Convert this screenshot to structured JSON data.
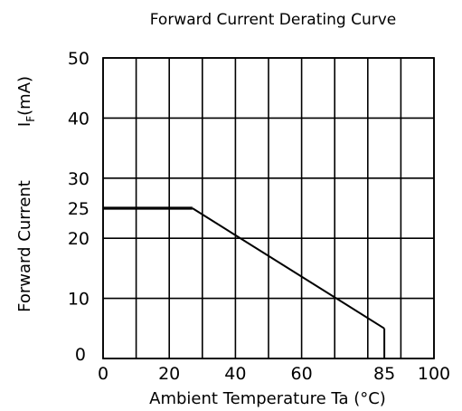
{
  "chart_data": {
    "type": "line",
    "title": "Forward Current Derating Curve",
    "xlabel": "Ambient Temperature Ta (°C)",
    "ylabel": "Forward Current",
    "ylabel_symbol": "I",
    "ylabel_subscript": "F",
    "ylabel_unit": "(mA)",
    "xlim": [
      0,
      100
    ],
    "ylim": [
      0,
      50
    ],
    "grid": true,
    "x_gridlines": [
      0,
      10,
      20,
      30,
      40,
      50,
      60,
      70,
      80,
      90,
      100
    ],
    "y_gridlines": [
      0,
      10,
      20,
      30,
      40,
      50
    ],
    "x_ticks": [
      {
        "value": 0,
        "label": "0"
      },
      {
        "value": 20,
        "label": "20"
      },
      {
        "value": 40,
        "label": "40"
      },
      {
        "value": 60,
        "label": "60"
      },
      {
        "value": 85,
        "label": "85"
      },
      {
        "value": 100,
        "label": "100"
      }
    ],
    "y_ticks": [
      {
        "value": 0,
        "label": "0"
      },
      {
        "value": 10,
        "label": "10"
      },
      {
        "value": 20,
        "label": "20"
      },
      {
        "value": 25,
        "label": "25"
      },
      {
        "value": 30,
        "label": "30"
      },
      {
        "value": 40,
        "label": "40"
      },
      {
        "value": 50,
        "label": "50"
      }
    ],
    "series": [
      {
        "x": [
          0,
          27,
          85,
          85
        ],
        "y": [
          25,
          25,
          5,
          0
        ]
      }
    ]
  }
}
